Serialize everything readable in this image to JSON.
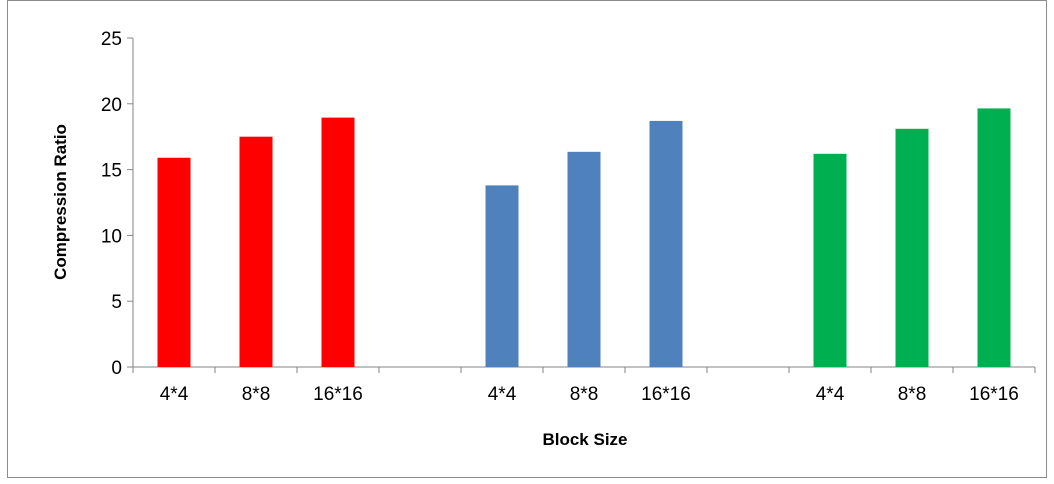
{
  "chart_data": {
    "type": "bar",
    "title": "",
    "xlabel": "Block Size",
    "ylabel": "Compression Ratio",
    "ylim": [
      0,
      25
    ],
    "yticks": [
      0,
      5,
      10,
      15,
      20,
      25
    ],
    "grid": false,
    "legend": "none",
    "categories": [
      "4*4",
      "8*8",
      "16*16",
      "",
      "4*4",
      "8*8",
      "16*16",
      "",
      "4*4",
      "8*8",
      "16*16"
    ],
    "values": [
      15.9,
      17.5,
      18.95,
      null,
      13.8,
      16.35,
      18.7,
      null,
      16.2,
      18.1,
      19.65
    ],
    "colors": [
      "#ff0000",
      "#ff0000",
      "#ff0000",
      null,
      "#4f81bd",
      "#4f81bd",
      "#4f81bd",
      null,
      "#00b050",
      "#00b050",
      "#00b050"
    ]
  }
}
